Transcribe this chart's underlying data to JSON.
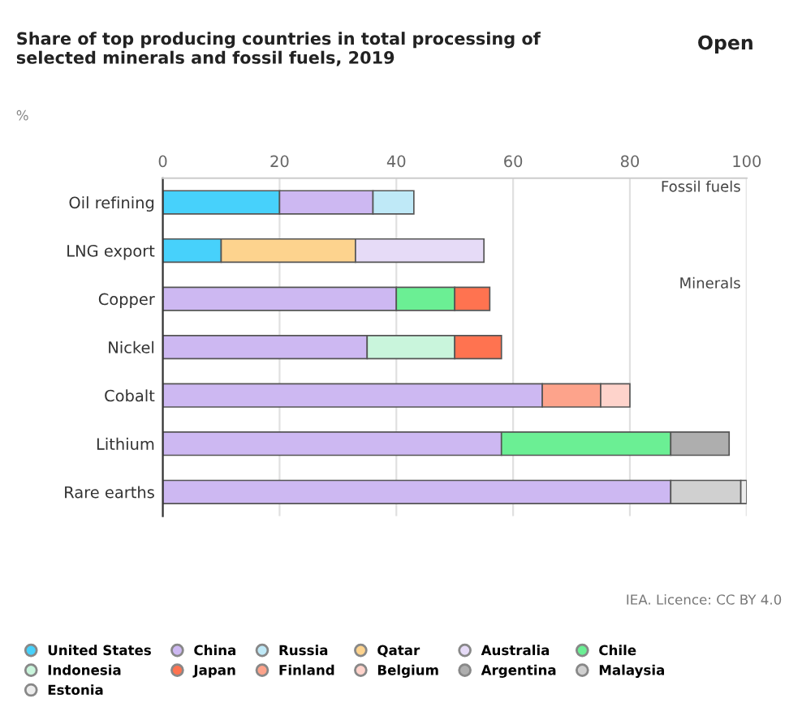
{
  "chart_data": {
    "type": "bar",
    "orientation": "horizontal",
    "stacked": true,
    "title": "Share of top producing countries in total processing of selected minerals and fossil fuels, 2019",
    "xlabel": "%",
    "categories": [
      "Oil refining",
      "LNG export",
      "Copper",
      "Nickel",
      "Cobalt",
      "Lithium",
      "Rare earths"
    ],
    "series": [
      {
        "name": "United States",
        "color": "#47d1fb",
        "values": [
          20,
          10,
          null,
          null,
          null,
          null,
          null
        ]
      },
      {
        "name": "China",
        "color": "#cdb8f2",
        "values": [
          16,
          null,
          40,
          35,
          65,
          58,
          87
        ]
      },
      {
        "name": "Russia",
        "color": "#bfe9f7",
        "values": [
          7,
          null,
          null,
          null,
          null,
          null,
          null
        ]
      },
      {
        "name": "Qatar",
        "color": "#fdd38e",
        "values": [
          null,
          23,
          null,
          null,
          null,
          null,
          null
        ]
      },
      {
        "name": "Australia",
        "color": "#e6dbf7",
        "values": [
          null,
          22,
          null,
          null,
          null,
          null,
          null
        ]
      },
      {
        "name": "Chile",
        "color": "#6bef94",
        "values": [
          null,
          null,
          10,
          null,
          null,
          29,
          null
        ]
      },
      {
        "name": "Indonesia",
        "color": "#c9f5dc",
        "values": [
          null,
          null,
          null,
          15,
          null,
          null,
          null
        ]
      },
      {
        "name": "Japan",
        "color": "#ff7350",
        "values": [
          null,
          null,
          6,
          8,
          null,
          null,
          null
        ]
      },
      {
        "name": "Finland",
        "color": "#fda38b",
        "values": [
          null,
          null,
          null,
          null,
          10,
          null,
          null
        ]
      },
      {
        "name": "Belgium",
        "color": "#fed3cb",
        "values": [
          null,
          null,
          null,
          null,
          5,
          null,
          null
        ]
      },
      {
        "name": "Argentina",
        "color": "#aeaeae",
        "values": [
          null,
          null,
          null,
          null,
          null,
          10,
          null
        ]
      },
      {
        "name": "Malaysia",
        "color": "#d0d0d0",
        "values": [
          null,
          null,
          null,
          null,
          null,
          null,
          12
        ]
      },
      {
        "name": "Estonia",
        "color": "#ececec",
        "values": [
          null,
          null,
          null,
          null,
          null,
          null,
          1
        ]
      }
    ],
    "xlim": [
      0,
      100
    ],
    "xticks": [
      0,
      20,
      40,
      60,
      80,
      100
    ],
    "grid": "x",
    "legend": "bottom",
    "annotations": [
      "Fossil fuels",
      "Minerals",
      "IEA. Licence: CC BY 4.0",
      "Open"
    ]
  }
}
